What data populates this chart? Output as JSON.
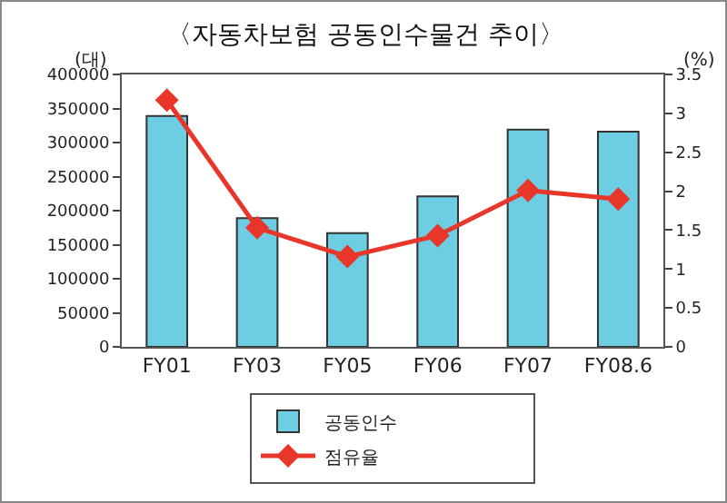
{
  "chart_data": {
    "type": "bar",
    "title": "〈자동차보험 공동인수물건 추이〉",
    "categories": [
      "FY01",
      "FY03",
      "FY05",
      "FY06",
      "FY07",
      "FY08.6"
    ],
    "series": [
      {
        "name": "공동인수",
        "color": "#6dcde3",
        "values": [
          339000,
          189000,
          167000,
          221000,
          319000,
          316000
        ]
      },
      {
        "name": "점유율",
        "type": "line",
        "axis": "y2",
        "color": "#e8362a",
        "marker": "diamond",
        "values": [
          3.17,
          1.53,
          1.16,
          1.43,
          2.01,
          1.9
        ]
      }
    ],
    "ylim": [
      0,
      400000
    ],
    "yticks": [
      0,
      50000,
      100000,
      150000,
      200000,
      250000,
      300000,
      350000,
      400000
    ],
    "y2lim": [
      0,
      3.5
    ],
    "y2ticks": [
      0,
      0.5,
      1,
      1.5,
      2,
      2.5,
      3,
      3.5
    ],
    "annotations": [
      "(대)",
      "(%)"
    ],
    "grid": false,
    "legend": "bottom"
  }
}
